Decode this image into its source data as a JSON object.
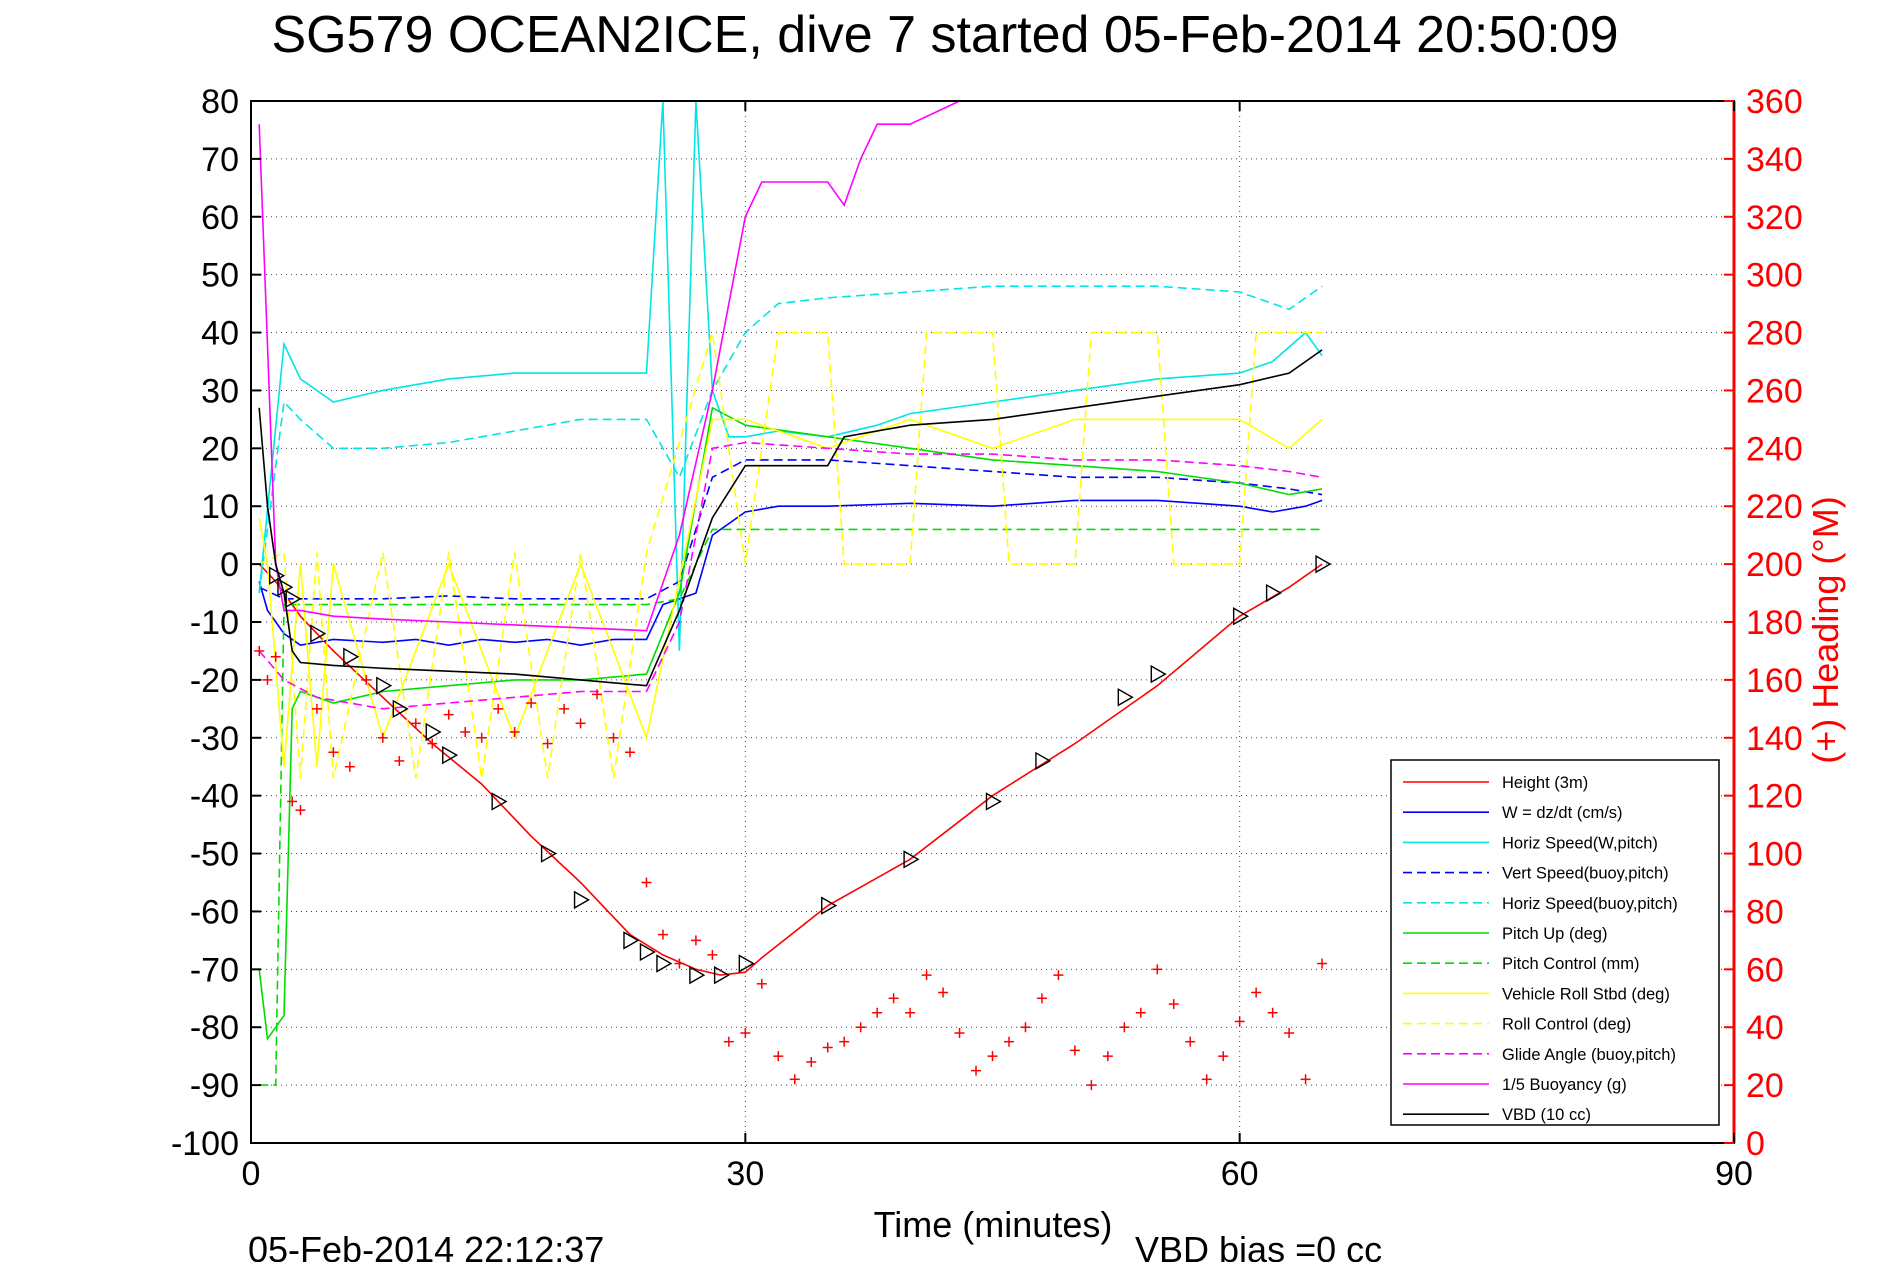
{
  "chart_data": {
    "type": "line",
    "title": "SG579 OCEAN2ICE, dive 7 started 05-Feb-2014 20:50:09",
    "xlabel": "Time (minutes)",
    "ylabel": "",
    "ylabel_right": "(+) Heading (°M)",
    "xlim": [
      0,
      90
    ],
    "ylim": [
      -100,
      80
    ],
    "ylim_right": [
      0,
      360
    ],
    "x_ticks": [
      "0",
      "30",
      "60",
      "90"
    ],
    "y_ticks": [
      "80",
      "70",
      "60",
      "50",
      "40",
      "30",
      "20",
      "10",
      "0",
      "-10",
      "-20",
      "-30",
      "-40",
      "-50",
      "-60",
      "-70",
      "-80",
      "-90",
      "-100"
    ],
    "y_ticks_right": [
      "360",
      "340",
      "320",
      "300",
      "280",
      "260",
      "240",
      "220",
      "200",
      "180",
      "160",
      "140",
      "120",
      "100",
      "80",
      "60",
      "40",
      "20",
      "0"
    ],
    "grid": true,
    "legend_position": "lower-right",
    "footer_timestamp": "05-Feb-2014 22:12:37",
    "footer_note": "VBD bias =0 cc",
    "series": [
      {
        "name": "Height (3m)",
        "color": "#ff0000",
        "dash": "solid",
        "x": [
          0.5,
          1.5,
          3,
          5,
          8,
          11,
          14,
          17,
          20,
          23,
          25,
          27,
          28.5,
          30,
          31,
          35,
          40,
          45,
          50,
          55,
          60,
          63,
          65
        ],
        "y": [
          0,
          -3,
          -9,
          -15,
          -23,
          -31,
          -38,
          -47,
          -55,
          -64,
          -67.5,
          -70,
          -71,
          -70.5,
          -68,
          -59,
          -51,
          -40,
          -31,
          -21,
          -9,
          -4,
          0
        ]
      },
      {
        "name": "W = dz/dt (cm/s)",
        "color": "#0000ff",
        "dash": "solid",
        "x": [
          0.5,
          1,
          2,
          3,
          5,
          8,
          10,
          12,
          14,
          16,
          18,
          20,
          22,
          24,
          25,
          27,
          28,
          30,
          32,
          35,
          40,
          45,
          50,
          55,
          60,
          62,
          64,
          65
        ],
        "y": [
          -3,
          -8,
          -12,
          -14,
          -13,
          -13.5,
          -13,
          -14,
          -13,
          -13.5,
          -13,
          -14,
          -13,
          -13,
          -7,
          -5,
          5,
          9,
          10,
          10,
          10.5,
          10,
          11,
          11,
          10,
          9,
          10,
          11
        ]
      },
      {
        "name": "Horiz Speed(W,pitch)",
        "color": "#00e5e5",
        "dash": "solid",
        "x": [
          0.5,
          2,
          3,
          5,
          8,
          12,
          16,
          20,
          24,
          25,
          26,
          27,
          28,
          29,
          30,
          32,
          35,
          38,
          40,
          45,
          50,
          55,
          60,
          62,
          64,
          65
        ],
        "y": [
          -5,
          38,
          32,
          28,
          30,
          32,
          33,
          33,
          33,
          80,
          -15,
          80,
          30,
          22,
          22,
          23,
          22,
          24,
          26,
          28,
          30,
          32,
          33,
          35,
          40,
          36
        ]
      },
      {
        "name": "Vert Speed(buoy,pitch)",
        "color": "#0000ff",
        "dash": "dashed",
        "x": [
          0.5,
          2,
          4,
          8,
          12,
          16,
          20,
          24,
          26,
          28,
          30,
          35,
          40,
          45,
          50,
          55,
          60,
          63,
          65
        ],
        "y": [
          -4,
          -6,
          -6,
          -6,
          -5.5,
          -6,
          -6,
          -6,
          -3,
          15,
          18,
          18,
          17,
          16,
          15,
          15,
          14,
          13,
          12
        ]
      },
      {
        "name": "Horiz Speed(buoy,pitch)",
        "color": "#00e5e5",
        "dash": "dashed",
        "x": [
          0.5,
          2,
          3,
          5,
          8,
          12,
          16,
          20,
          24,
          26,
          28,
          30,
          32,
          35,
          40,
          45,
          50,
          55,
          60,
          63,
          65
        ],
        "y": [
          -5,
          28,
          25,
          20,
          20,
          21,
          23,
          25,
          25,
          15,
          30,
          40,
          45,
          46,
          47,
          48,
          48,
          48,
          47,
          44,
          48
        ]
      },
      {
        "name": "Pitch Up (deg)",
        "color": "#00dd00",
        "dash": "solid",
        "x": [
          0.5,
          1,
          1.5,
          2,
          2.5,
          3,
          5,
          8,
          12,
          16,
          20,
          24,
          26,
          28,
          30,
          35,
          40,
          45,
          50,
          55,
          60,
          63,
          65
        ],
        "y": [
          -70,
          -82,
          -80,
          -78,
          -25,
          -22,
          -24,
          -22,
          -21,
          -20,
          -20,
          -19,
          -5,
          27,
          24,
          22,
          20,
          18,
          17,
          16,
          14,
          12,
          13
        ]
      },
      {
        "name": "Pitch Control (mm)",
        "color": "#00dd00",
        "dash": "dashed",
        "x": [
          0.5,
          1.5,
          2,
          2.5,
          3,
          24,
          26,
          28,
          30,
          65
        ],
        "y": [
          -90,
          -90,
          -7,
          -7,
          -7,
          -7,
          -6,
          6,
          6,
          6
        ]
      },
      {
        "name": "Vehicle Roll Stbd (deg)",
        "color": "#ffff00",
        "dash": "solid",
        "x": [
          0.5,
          1,
          2,
          3,
          4,
          5,
          8,
          12,
          16,
          20,
          24,
          28,
          30,
          35,
          40,
          45,
          50,
          55,
          60,
          63,
          65
        ],
        "y": [
          8,
          0,
          -35,
          0,
          -35,
          0,
          -30,
          0,
          -30,
          0,
          -30,
          25,
          25,
          20,
          25,
          20,
          25,
          25,
          25,
          20,
          25
        ]
      },
      {
        "name": "Roll Control (deg)",
        "color": "#ffff00",
        "dash": "dashed",
        "x": [
          0.5,
          2,
          3,
          4,
          5,
          8,
          10,
          12,
          14,
          16,
          18,
          20,
          22,
          24,
          28,
          30,
          32,
          35,
          36,
          40,
          41,
          45,
          46,
          50,
          51,
          55,
          56,
          60,
          61,
          65
        ],
        "y": [
          0,
          2,
          -37,
          2,
          -37,
          2,
          -37,
          2,
          -37,
          2,
          -37,
          2,
          -37,
          2,
          40,
          0,
          40,
          40,
          0,
          0,
          40,
          40,
          0,
          0,
          40,
          40,
          0,
          0,
          40,
          40
        ]
      },
      {
        "name": "Glide Angle (buoy,pitch)",
        "color": "#ff00ff",
        "dash": "dashed",
        "x": [
          0.5,
          2,
          4,
          8,
          12,
          16,
          20,
          24,
          26,
          28,
          30,
          35,
          40,
          45,
          50,
          55,
          60,
          63,
          65
        ],
        "y": [
          -15,
          -20,
          -23,
          -25,
          -24,
          -23,
          -22,
          -22,
          -10,
          20,
          21,
          20,
          19,
          19,
          18,
          18,
          17,
          16,
          15
        ]
      },
      {
        "name": "1/5 Buoyancy (g)",
        "color": "#ff00ff",
        "dash": "solid",
        "x": [
          0.5,
          1.5,
          2,
          3,
          5,
          8,
          12,
          16,
          20,
          24,
          26,
          28,
          30,
          31,
          35,
          36,
          37,
          38,
          40,
          43
        ],
        "y": [
          76,
          0,
          -8,
          -8,
          -9,
          -9.5,
          -10,
          -10.5,
          -11,
          -11.5,
          5,
          30,
          60,
          66,
          66,
          62,
          70,
          76,
          76,
          80
        ]
      },
      {
        "name": "VBD (10 cc)",
        "color": "#000000",
        "dash": "solid",
        "x": [
          0.5,
          1,
          1.5,
          2,
          2.5,
          3,
          5,
          8,
          12,
          16,
          20,
          24,
          26,
          28,
          30,
          31,
          35,
          36,
          40,
          45,
          50,
          55,
          60,
          63,
          65
        ],
        "y": [
          27,
          10,
          0,
          -5,
          -15,
          -17,
          -17.5,
          -18,
          -18.5,
          -19,
          -20,
          -21,
          -8,
          8,
          17,
          17,
          17,
          22,
          24,
          25,
          27,
          29,
          31,
          33,
          37
        ]
      }
    ],
    "heading_points": {
      "name": "(+) Heading (°M)",
      "color": "#ff0000",
      "marker": "+",
      "axis": "right",
      "x": [
        0.5,
        1,
        1.5,
        2.5,
        3,
        4,
        5,
        6,
        7,
        8,
        9,
        10,
        11,
        12,
        13,
        14,
        15,
        16,
        17,
        18,
        19,
        20,
        21,
        22,
        23,
        24,
        25,
        26,
        27,
        28,
        29,
        30,
        31,
        32,
        33,
        34,
        35,
        36,
        37,
        38,
        39,
        40,
        41,
        42,
        43,
        44,
        45,
        46,
        47,
        48,
        49,
        50,
        51,
        52,
        53,
        54,
        55,
        56,
        57,
        58,
        59,
        60,
        61,
        62,
        63,
        64,
        65
      ],
      "y": [
        170,
        160,
        168,
        118,
        115,
        150,
        135,
        130,
        160,
        140,
        132,
        145,
        138,
        148,
        142,
        140,
        150,
        142,
        152,
        138,
        150,
        145,
        155,
        140,
        135,
        90,
        72,
        62,
        70,
        65,
        35,
        38,
        55,
        30,
        22,
        28,
        33,
        35,
        40,
        45,
        50,
        45,
        58,
        52,
        38,
        25,
        30,
        35,
        40,
        50,
        58,
        32,
        20,
        30,
        40,
        45,
        60,
        48,
        35,
        22,
        30,
        42,
        52,
        45,
        38,
        22,
        62
      ]
    },
    "triangle_markers": {
      "name": "dive/climb markers",
      "color": "#000000",
      "marker": "triangle",
      "x": [
        1.5,
        2,
        2.5,
        4,
        6,
        8,
        9,
        11,
        12,
        15,
        18,
        20,
        23,
        24,
        25,
        27,
        28.5,
        30,
        35,
        40,
        45,
        48,
        53,
        55,
        60,
        62,
        65
      ],
      "y": [
        -2,
        -4,
        -6,
        -12,
        -16,
        -21,
        -25,
        -29,
        -33,
        -41,
        -50,
        -58,
        -65,
        -67,
        -69,
        -71,
        -71,
        -69,
        -59,
        -51,
        -41,
        -34,
        -23,
        -19,
        -9,
        -5,
        0
      ]
    }
  }
}
